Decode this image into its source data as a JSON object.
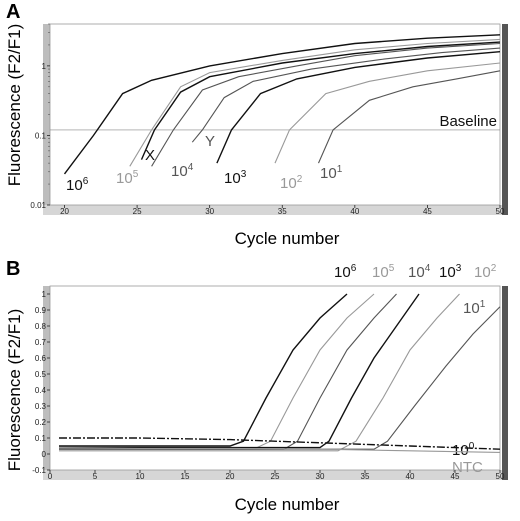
{
  "chart_data": [
    {
      "panel": "A",
      "type": "line",
      "xlabel": "Cycle number",
      "ylabel": "Fluorescence (F2/F1)",
      "yscale": "log",
      "xlim": [
        19,
        50
      ],
      "ylim": [
        0.01,
        4
      ],
      "xticks": [
        20,
        25,
        30,
        35,
        40,
        45,
        50
      ],
      "yticks": [
        {
          "v": 0.01,
          "label": "0.01"
        },
        {
          "v": 0.1,
          "label": "0.1"
        },
        {
          "v": 1,
          "label": "1"
        }
      ],
      "baseline": {
        "label": "Baseline",
        "y": 0.12
      },
      "series": [
        {
          "label_base": "10",
          "label_exp": "6",
          "color": "#111111",
          "points": [
            [
              20,
              0.028
            ],
            [
              22,
              0.1
            ],
            [
              24,
              0.4
            ],
            [
              26,
              0.62
            ],
            [
              30,
              1.0
            ],
            [
              35,
              1.5
            ],
            [
              40,
              2.1
            ],
            [
              45,
              2.5
            ],
            [
              50,
              2.8
            ]
          ]
        },
        {
          "label_base": "10",
          "label_exp": "5",
          "color": "#999999",
          "points": [
            [
              24.5,
              0.036
            ],
            [
              26,
              0.12
            ],
            [
              28,
              0.5
            ],
            [
              30,
              0.8
            ],
            [
              35,
              1.2
            ],
            [
              40,
              1.7
            ],
            [
              45,
              2.1
            ],
            [
              50,
              2.4
            ]
          ]
        },
        {
          "label_base": "10",
          "label_exp": "4",
          "color": "#555555",
          "points": [
            [
              26,
              0.036
            ],
            [
              27.5,
              0.12
            ],
            [
              29.5,
              0.45
            ],
            [
              32,
              0.7
            ],
            [
              36,
              1.0
            ],
            [
              40,
              1.4
            ],
            [
              45,
              1.8
            ],
            [
              50,
              2.1
            ]
          ]
        },
        {
          "label_base": "10",
          "label_exp": "3",
          "color": "#111111",
          "points": [
            [
              30.5,
              0.04
            ],
            [
              31.5,
              0.12
            ],
            [
              33.5,
              0.4
            ],
            [
              36,
              0.65
            ],
            [
              40,
              0.95
            ],
            [
              45,
              1.3
            ],
            [
              50,
              1.6
            ]
          ]
        },
        {
          "label_base": "10",
          "label_exp": "2",
          "color": "#999999",
          "points": [
            [
              34.5,
              0.04
            ],
            [
              35.5,
              0.12
            ],
            [
              38,
              0.4
            ],
            [
              41,
              0.6
            ],
            [
              45,
              0.85
            ],
            [
              50,
              1.1
            ]
          ]
        },
        {
          "label_base": "10",
          "label_exp": "1",
          "color": "#555555",
          "points": [
            [
              37.5,
              0.04
            ],
            [
              38.5,
              0.12
            ],
            [
              41,
              0.32
            ],
            [
              44,
              0.5
            ],
            [
              47,
              0.65
            ],
            [
              50,
              0.85
            ]
          ]
        },
        {
          "label_base": "",
          "label_exp": "",
          "color": "#111111",
          "points": [
            [
              25.3,
              0.045
            ],
            [
              26.2,
              0.12
            ],
            [
              28,
              0.42
            ],
            [
              30,
              0.7
            ],
            [
              35,
              1.1
            ],
            [
              40,
              1.5
            ],
            [
              45,
              1.9
            ],
            [
              50,
              2.2
            ]
          ]
        },
        {
          "label_base": "",
          "label_exp": "",
          "color": "#555555",
          "points": [
            [
              28.8,
              0.08
            ],
            [
              29.5,
              0.12
            ],
            [
              31,
              0.35
            ],
            [
              33,
              0.6
            ],
            [
              37,
              0.9
            ],
            [
              42,
              1.25
            ],
            [
              46,
              1.55
            ],
            [
              50,
              1.8
            ]
          ]
        }
      ],
      "annotations": [
        {
          "text": "X",
          "color": "#111111"
        },
        {
          "text": "Y",
          "color": "#555555"
        }
      ]
    },
    {
      "panel": "B",
      "type": "line",
      "xlabel": "Cycle number",
      "ylabel": "Fluorescence (F2/F1)",
      "xlim": [
        0,
        50
      ],
      "ylim": [
        -0.1,
        1.05
      ],
      "xticks": [
        0,
        5,
        10,
        15,
        20,
        25,
        30,
        35,
        40,
        45,
        50
      ],
      "yticks": [
        {
          "v": -0.1,
          "label": "-0.1"
        },
        {
          "v": 0,
          "label": "0"
        },
        {
          "v": 0.1,
          "label": "0.1"
        },
        {
          "v": 0.2,
          "label": "0.2"
        },
        {
          "v": 0.3,
          "label": "0.3"
        },
        {
          "v": 0.4,
          "label": "0.4"
        },
        {
          "v": 0.5,
          "label": "0.5"
        },
        {
          "v": 0.6,
          "label": "0.6"
        },
        {
          "v": 0.7,
          "label": "0.7"
        },
        {
          "v": 0.8,
          "label": "0.8"
        },
        {
          "v": 0.9,
          "label": "0.9"
        },
        {
          "v": 1,
          "label": "1"
        }
      ],
      "series": [
        {
          "label_base": "10",
          "label_exp": "6",
          "color": "#111111",
          "points": [
            [
              1,
              0.05
            ],
            [
              20,
              0.05
            ],
            [
              21.5,
              0.08
            ],
            [
              24,
              0.35
            ],
            [
              27,
              0.65
            ],
            [
              30,
              0.85
            ],
            [
              33,
              1.0
            ]
          ]
        },
        {
          "label_base": "10",
          "label_exp": "5",
          "color": "#999999",
          "points": [
            [
              1,
              0.04
            ],
            [
              23,
              0.04
            ],
            [
              24.5,
              0.08
            ],
            [
              27,
              0.35
            ],
            [
              30,
              0.65
            ],
            [
              33,
              0.85
            ],
            [
              36,
              1.0
            ]
          ]
        },
        {
          "label_base": "10",
          "label_exp": "4",
          "color": "#555555",
          "points": [
            [
              1,
              0.03
            ],
            [
              26,
              0.03
            ],
            [
              27.5,
              0.08
            ],
            [
              30,
              0.35
            ],
            [
              33,
              0.65
            ],
            [
              36,
              0.85
            ],
            [
              38.5,
              1.0
            ]
          ]
        },
        {
          "label_base": "10",
          "label_exp": "3",
          "color": "#111111",
          "points": [
            [
              1,
              0.04
            ],
            [
              30,
              0.04
            ],
            [
              31,
              0.08
            ],
            [
              33.5,
              0.35
            ],
            [
              36,
              0.6
            ],
            [
              38.5,
              0.8
            ],
            [
              41,
              1.0
            ]
          ]
        },
        {
          "label_base": "10",
          "label_exp": "2",
          "color": "#999999",
          "points": [
            [
              1,
              0.02
            ],
            [
              32,
              0.02
            ],
            [
              34,
              0.08
            ],
            [
              37,
              0.35
            ],
            [
              40,
              0.65
            ],
            [
              43,
              0.85
            ],
            [
              45.5,
              1.0
            ]
          ]
        },
        {
          "label_base": "10",
          "label_exp": "1",
          "color": "#555555",
          "points": [
            [
              1,
              0.03
            ],
            [
              36,
              0.03
            ],
            [
              37.5,
              0.08
            ],
            [
              40.5,
              0.3
            ],
            [
              44,
              0.55
            ],
            [
              47,
              0.75
            ],
            [
              50,
              0.92
            ]
          ]
        },
        {
          "label_base": "10",
          "label_exp": "0",
          "color": "#111111",
          "dashed": true,
          "points": [
            [
              1,
              0.1
            ],
            [
              10,
              0.1
            ],
            [
              20,
              0.09
            ],
            [
              30,
              0.07
            ],
            [
              40,
              0.05
            ],
            [
              50,
              0.03
            ]
          ]
        },
        {
          "label_base": "NTC",
          "label_exp": "",
          "color": "#999999",
          "points": [
            [
              1,
              0.04
            ],
            [
              10,
              0.035
            ],
            [
              20,
              0.035
            ],
            [
              30,
              0.03
            ],
            [
              40,
              0.02
            ],
            [
              50,
              0.01
            ]
          ]
        }
      ]
    }
  ]
}
